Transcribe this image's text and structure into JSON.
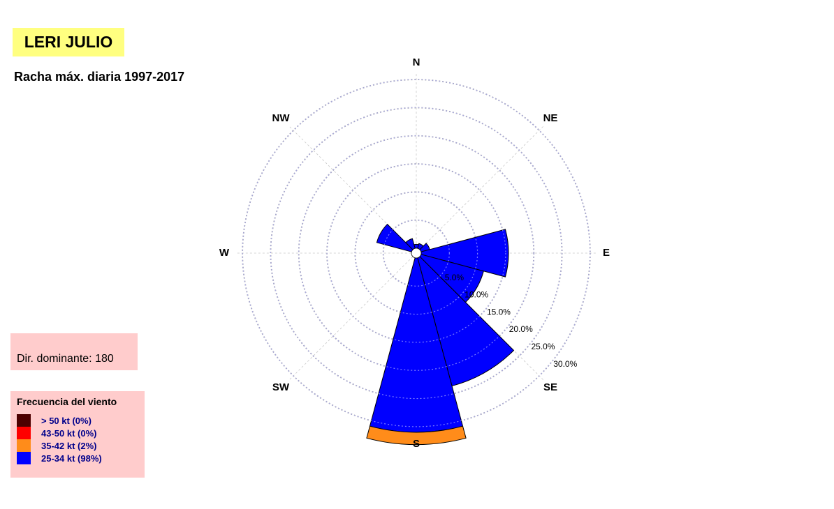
{
  "header": {
    "title": "LERI JULIO",
    "subtitle": "Racha máx. diaria 1997-2017"
  },
  "dominant": {
    "label": "Dir. dominante:",
    "value": "180"
  },
  "legend": {
    "title": "Frecuencia del viento",
    "items": [
      {
        "label": "> 50 kt (0%)",
        "color": "#4d0000"
      },
      {
        "label": "43-50 kt (0%)",
        "color": "#ff0000"
      },
      {
        "label": "35-42 kt (2%)",
        "color": "#ff8c1a"
      },
      {
        "label": "25-34 kt (98%)",
        "color": "#0000ff"
      }
    ]
  },
  "chart_data": {
    "type": "windrose",
    "directions": [
      "N",
      "NE",
      "E",
      "SE",
      "S",
      "SW",
      "W",
      "NW"
    ],
    "radial_ticks": [
      5,
      10,
      15,
      20,
      25,
      30
    ],
    "radial_tick_labels": [
      "5.0%",
      "10.0%",
      "15.0%",
      "20.0%",
      "25.0%",
      "30.0%"
    ],
    "rmax": 32,
    "grid": true,
    "sector_width_deg": 30,
    "sectors": [
      {
        "direction_deg": 0,
        "bins": {
          "25-34 kt": 0.7,
          "35-42 kt": 0
        }
      },
      {
        "direction_deg": 30,
        "bins": {
          "25-34 kt": 0.9,
          "35-42 kt": 0
        }
      },
      {
        "direction_deg": 60,
        "bins": {
          "25-34 kt": 1.6,
          "35-42 kt": 0
        }
      },
      {
        "direction_deg": 90,
        "bins": {
          "25-34 kt": 15.5,
          "35-42 kt": 0
        }
      },
      {
        "direction_deg": 120,
        "bins": {
          "25-34 kt": 11.5,
          "35-42 kt": 0
        }
      },
      {
        "direction_deg": 150,
        "bins": {
          "25-34 kt": 23.6,
          "35-42 kt": 0
        }
      },
      {
        "direction_deg": 180,
        "bins": {
          "25-34 kt": 31.0,
          "35-42 kt": 2.2
        }
      },
      {
        "direction_deg": 210,
        "bins": {
          "25-34 kt": 0,
          "35-42 kt": 0
        }
      },
      {
        "direction_deg": 240,
        "bins": {
          "25-34 kt": 0,
          "35-42 kt": 0
        }
      },
      {
        "direction_deg": 270,
        "bins": {
          "25-34 kt": 0,
          "35-42 kt": 0
        }
      },
      {
        "direction_deg": 300,
        "bins": {
          "25-34 kt": 6.4,
          "35-42 kt": 0
        }
      },
      {
        "direction_deg": 330,
        "bins": {
          "25-34 kt": 1.8,
          "35-42 kt": 0
        }
      }
    ],
    "bin_colors": {
      "25-34 kt": "#0000ff",
      "35-42 kt": "#ff8c1a"
    }
  }
}
